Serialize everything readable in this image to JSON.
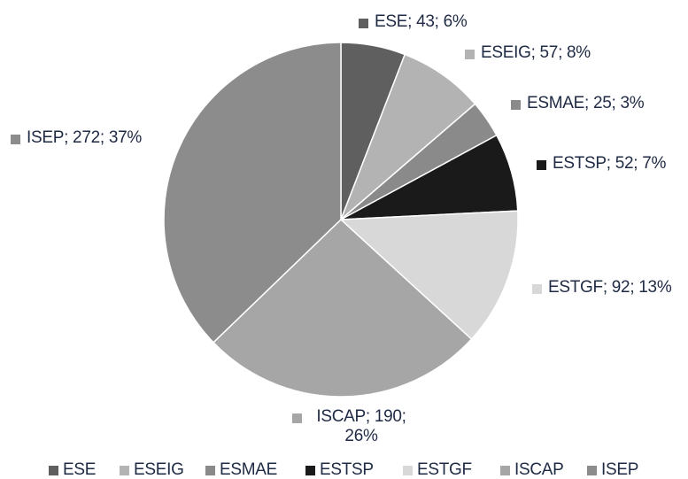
{
  "chart_data": {
    "type": "pie",
    "categories": [
      "ESE",
      "ESEIG",
      "ESMAE",
      "ESTSP",
      "ESTGF",
      "ISCAP",
      "ISEP"
    ],
    "values": [
      43,
      57,
      25,
      52,
      92,
      190,
      272
    ],
    "value_labels": [
      "ESE; 43; 6%",
      "ESEIG; 57; 8%",
      "ESMAE; 25; 3%",
      "ESTSP; 52; 7%",
      "ESTGF; 92; 13%",
      "ISCAP; 190; 26%",
      "ISEP; 272; 37%"
    ],
    "colors": [
      "#5f5f5f",
      "#b3b3b3",
      "#8a8a8a",
      "#1a1a1a",
      "#d8d8d8",
      "#a6a6a6",
      "#8c8c8c"
    ],
    "legend": "bottom"
  }
}
